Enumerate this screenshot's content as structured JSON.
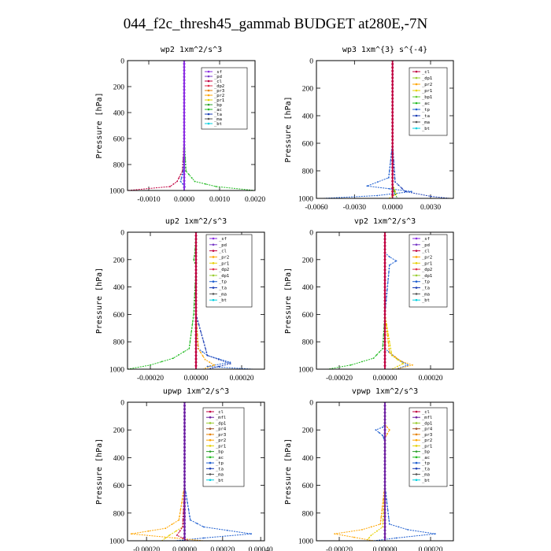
{
  "page": {
    "title": "044_f2c_thresh45_gammab  BUDGET at280E,-7N"
  },
  "colors": {
    "sf": "#8a2be2",
    "pd": "#7a3cc8",
    "cl": "#c00040",
    "dp2": "#e0304a",
    "pr2": "#ffa500",
    "pr1": "#e6d000",
    "bp": "#2ca02c",
    "ac": "#22bb22",
    "tp": "#1f5fd0",
    "ta": "#1a3cb4",
    "ma": "#555555",
    "bt": "#00d0e0",
    "mfl": "#6b1fa0",
    "dp1": "#9acd32",
    "pr4": "#a0522d",
    "pr3": "#e68000",
    "bp1": "#66cc33"
  },
  "chart_data": [
    {
      "type": "line",
      "title": "wp2   1xm^2/s^3",
      "ylabel": "Pressure [hPa]",
      "xlim": [
        -0.0016,
        0.002
      ],
      "ylim": [
        1000,
        0
      ],
      "xticks": [
        -0.001,
        0.0,
        0.001,
        0.002
      ],
      "xtick_labels": [
        "-0.0010",
        "0.0000",
        "0.0010",
        "0.0020"
      ],
      "yticks": [
        0,
        200,
        400,
        600,
        800,
        1000
      ],
      "legend": [
        "_sf",
        "_pd",
        "_cl",
        "_dp2",
        "_pr3",
        "_pr2",
        "_pr1",
        "_bp",
        "_ac",
        "_ta",
        "_ma",
        "_bt"
      ],
      "series": [
        {
          "name": "_sf",
          "color": "#8a2be2",
          "x": [
            0,
            0,
            0,
            0,
            0,
            0
          ],
          "y": [
            0,
            200,
            400,
            600,
            800,
            1000
          ]
        },
        {
          "name": "_pd",
          "color": "#c00040",
          "x": [
            0,
            0,
            0,
            0,
            -5e-05,
            -0.0002,
            -0.0004,
            -0.0016
          ],
          "y": [
            0,
            200,
            400,
            600,
            850,
            930,
            970,
            1000
          ]
        },
        {
          "name": "_bp",
          "color": "#22bb22",
          "x": [
            0,
            0,
            0,
            0,
            5e-05,
            0.0003,
            0.0009,
            0.002
          ],
          "y": [
            0,
            200,
            400,
            600,
            850,
            930,
            970,
            1000
          ]
        },
        {
          "name": "_ta",
          "color": "#1f5fd0",
          "x": [
            0,
            0,
            0,
            0,
            -3e-05,
            -0.0001,
            2e-05,
            0
          ],
          "y": [
            0,
            200,
            400,
            600,
            850,
            930,
            970,
            1000
          ]
        },
        {
          "name": "_bt",
          "color": "#8a2be2",
          "x": [
            0,
            0,
            0,
            0,
            0,
            0
          ],
          "y": [
            0,
            200,
            400,
            600,
            800,
            1000
          ]
        }
      ]
    },
    {
      "type": "line",
      "title": "wp3   1xm^{3} s^{-4}",
      "ylabel": "Pressure [hPa]",
      "xlim": [
        -0.006,
        0.0048
      ],
      "ylim": [
        1000,
        0
      ],
      "xticks": [
        -0.006,
        -0.003,
        0.0,
        0.003
      ],
      "xtick_labels": [
        "-0.0060",
        "-0.0030",
        "0.0000",
        "0.0030"
      ],
      "yticks": [
        0,
        200,
        400,
        600,
        800,
        1000
      ],
      "legend": [
        "_cl",
        "_dp1",
        "_pr2",
        "_pr1",
        "_bp1",
        "_ac",
        "_tp",
        "_ta",
        "_ma",
        "_bt"
      ],
      "series": [
        {
          "name": "_cl",
          "color": "#c00040",
          "x": [
            0,
            0,
            0,
            0,
            0,
            0
          ],
          "y": [
            0,
            200,
            400,
            600,
            800,
            1000
          ]
        },
        {
          "name": "_tp",
          "color": "#1f5fd0",
          "x": [
            0,
            0,
            0,
            0,
            -0.0003,
            -0.002,
            0.0015,
            -0.0012,
            -0.0055
          ],
          "y": [
            0,
            200,
            400,
            600,
            850,
            910,
            950,
            980,
            1000
          ]
        },
        {
          "name": "_ta",
          "color": "#1a3cb4",
          "x": [
            0,
            0,
            0,
            0,
            0.0002,
            0.001,
            0.003,
            0.0045
          ],
          "y": [
            0,
            200,
            400,
            600,
            880,
            950,
            985,
            1000
          ]
        },
        {
          "name": "_pr1",
          "color": "#e6d000",
          "x": [
            0,
            0,
            0,
            0,
            0,
            0.0003,
            -0.0003
          ],
          "y": [
            0,
            200,
            400,
            600,
            900,
            970,
            1000
          ]
        },
        {
          "name": "_bp1",
          "color": "#2ca02c",
          "x": [
            0,
            0,
            0,
            0,
            0,
            0.0002,
            0.0004
          ],
          "y": [
            0,
            200,
            400,
            600,
            900,
            970,
            1000
          ]
        },
        {
          "name": "_cl",
          "color": "#c00040",
          "x": [
            0,
            0,
            0,
            0,
            0,
            0
          ],
          "y": [
            0,
            200,
            400,
            600,
            800,
            1000
          ]
        }
      ]
    },
    {
      "type": "line",
      "title": "up2   1xm^2/s^3",
      "ylabel": "Pressure [hPa]",
      "xlim": [
        -0.0003,
        0.0003
      ],
      "ylim": [
        1000,
        0
      ],
      "xticks": [
        -0.0002,
        0.0,
        0.0002
      ],
      "xtick_labels": [
        "-0.00020",
        "0.00000",
        "0.00020"
      ],
      "yticks": [
        0,
        200,
        400,
        600,
        800,
        1000
      ],
      "legend": [
        "_sf",
        "_pd",
        "_cl",
        "_pr2",
        "_pr1",
        "_dp2",
        "_dp1",
        "_tp",
        "_ta",
        "_ma",
        "_bt"
      ],
      "series": [
        {
          "name": "_sf",
          "color": "#c00040",
          "x": [
            0,
            0,
            0,
            0,
            0,
            0
          ],
          "y": [
            0,
            200,
            400,
            600,
            800,
            1000
          ]
        },
        {
          "name": "_dp1",
          "color": "#22bb22",
          "x": [
            0,
            -5e-06,
            -1e-05,
            0,
            -1e-05,
            -3e-05,
            -0.0001,
            -0.0002,
            -0.0003
          ],
          "y": [
            0,
            150,
            200,
            250,
            600,
            850,
            920,
            970,
            1000
          ]
        },
        {
          "name": "_tp",
          "color": "#1f5fd0",
          "x": [
            0,
            0,
            0,
            1e-05,
            5e-05,
            0.00015,
            5e-05,
            0.00025
          ],
          "y": [
            0,
            200,
            600,
            850,
            900,
            950,
            980,
            1000
          ]
        },
        {
          "name": "_pr2",
          "color": "#ffa500",
          "x": [
            0,
            0,
            0,
            1e-05,
            4e-05,
            8e-05,
            3e-05
          ],
          "y": [
            0,
            200,
            600,
            850,
            930,
            970,
            1000
          ]
        },
        {
          "name": "_ta",
          "color": "#1a3cb4",
          "x": [
            0,
            0,
            0,
            5e-05,
            0.00015,
            5e-05
          ],
          "y": [
            0,
            200,
            600,
            900,
            960,
            1000
          ]
        },
        {
          "name": "_cl",
          "color": "#c00040",
          "x": [
            0,
            0,
            0,
            0,
            0,
            0
          ],
          "y": [
            0,
            200,
            400,
            600,
            800,
            1000
          ]
        }
      ]
    },
    {
      "type": "line",
      "title": "vp2   1xm^2/s^3",
      "ylabel": "Pressure [hPa]",
      "xlim": [
        -0.0003,
        0.0003
      ],
      "ylim": [
        1000,
        0
      ],
      "xticks": [
        -0.0002,
        0.0,
        0.0002
      ],
      "xtick_labels": [
        "-0.00020",
        "0.00000",
        "0.00020"
      ],
      "yticks": [
        0,
        200,
        400,
        600,
        800,
        1000
      ],
      "legend": [
        "_sf",
        "_pd",
        "_cl",
        "_pr2",
        "_pr1",
        "_dp2",
        "_dp1",
        "_tp",
        "_ta",
        "_ma",
        "_bt"
      ],
      "series": [
        {
          "name": "_sf",
          "color": "#c00040",
          "x": [
            0,
            0,
            0,
            0,
            0,
            0
          ],
          "y": [
            0,
            200,
            400,
            600,
            800,
            1000
          ]
        },
        {
          "name": "_dp1",
          "color": "#22bb22",
          "x": [
            0,
            0,
            0,
            -1e-05,
            -5e-05,
            -0.00015,
            -0.00025
          ],
          "y": [
            0,
            200,
            600,
            850,
            920,
            970,
            1000
          ]
        },
        {
          "name": "_tp",
          "color": "#1f5fd0",
          "x": [
            0,
            0,
            2e-05,
            5e-05,
            2e-05,
            0,
            0,
            5e-05,
            0.0001,
            5e-05
          ],
          "y": [
            0,
            150,
            180,
            210,
            240,
            600,
            850,
            920,
            970,
            1000
          ]
        },
        {
          "name": "_pr2",
          "color": "#ffa500",
          "x": [
            0,
            0,
            0,
            2e-05,
            7e-05,
            0.00012,
            5e-05
          ],
          "y": [
            0,
            200,
            600,
            880,
            940,
            970,
            1000
          ]
        },
        {
          "name": "_pr1",
          "color": "#e6d000",
          "x": [
            0,
            0,
            0,
            3e-05,
            8e-05,
            3e-05
          ],
          "y": [
            0,
            200,
            600,
            900,
            960,
            1000
          ]
        },
        {
          "name": "_cl",
          "color": "#c00040",
          "x": [
            0,
            0,
            0,
            0,
            0,
            0
          ],
          "y": [
            0,
            200,
            400,
            600,
            800,
            1000
          ]
        }
      ]
    },
    {
      "type": "line",
      "title": "upwp   1xm^2/s^3",
      "ylabel": "Pressure [hPa]",
      "xlim": [
        -0.0003,
        0.00042
      ],
      "ylim": [
        1000,
        0
      ],
      "xticks": [
        -0.0002,
        0.0,
        0.0002,
        0.0004
      ],
      "xtick_labels": [
        "-0.00020",
        "0.00000",
        "0.00020",
        "0.00040"
      ],
      "yticks": [
        0,
        200,
        400,
        600,
        800,
        1000
      ],
      "legend": [
        "_cl",
        "_mfl",
        "_dp1",
        "_pr4",
        "_pr3",
        "_pr2",
        "_pr1",
        "_bp",
        "_ac",
        "_tp",
        "_ta",
        "_ma",
        "_bt"
      ],
      "series": [
        {
          "name": "_cl",
          "color": "#8a2be2",
          "x": [
            0,
            0,
            0,
            0,
            0,
            0
          ],
          "y": [
            0,
            200,
            400,
            600,
            800,
            1000
          ]
        },
        {
          "name": "_ta",
          "color": "#1f5fd0",
          "x": [
            0,
            0,
            0,
            3e-05,
            0.0001,
            0.00035,
            0.0001,
            -5e-05
          ],
          "y": [
            0,
            200,
            600,
            850,
            900,
            950,
            980,
            1000
          ]
        },
        {
          "name": "_pr3",
          "color": "#ffa500",
          "x": [
            0,
            0,
            0,
            -3e-05,
            -0.0001,
            -0.00028,
            -5e-05,
            0.0001
          ],
          "y": [
            0,
            200,
            600,
            850,
            910,
            950,
            980,
            1000
          ]
        },
        {
          "name": "_pr1",
          "color": "#e6d000",
          "x": [
            0,
            0,
            0,
            -1e-05,
            -8e-05,
            -0.00012
          ],
          "y": [
            0,
            200,
            600,
            900,
            960,
            1000
          ]
        },
        {
          "name": "_dp1",
          "color": "#c00040",
          "x": [
            0,
            0,
            0,
            -1e-05,
            -4e-05,
            2e-05
          ],
          "y": [
            0,
            200,
            600,
            900,
            960,
            1000
          ]
        },
        {
          "name": "_mfl",
          "color": "#6b1fa0",
          "x": [
            0,
            0,
            0,
            0,
            0,
            0
          ],
          "y": [
            0,
            200,
            400,
            600,
            800,
            1000
          ]
        }
      ]
    },
    {
      "type": "line",
      "title": "vpwp   1xm^2/s^3",
      "ylabel": "Pressure [hPa]",
      "xlim": [
        -0.0003,
        0.0003
      ],
      "ylim": [
        1000,
        0
      ],
      "xticks": [
        -0.0002,
        0.0,
        0.0002
      ],
      "xtick_labels": [
        "-0.00020",
        "0.00000",
        "0.00020"
      ],
      "yticks": [
        0,
        200,
        400,
        600,
        800,
        1000
      ],
      "legend": [
        "_cl",
        "_mfl",
        "_dp1",
        "_pr4",
        "_pr3",
        "_pr2",
        "_pr1",
        "_bp",
        "_ac",
        "_tp",
        "_ta",
        "_ma",
        "_bt"
      ],
      "series": [
        {
          "name": "_cl",
          "color": "#8a2be2",
          "x": [
            0,
            0,
            0,
            0,
            0,
            0
          ],
          "y": [
            0,
            200,
            400,
            600,
            800,
            1000
          ]
        },
        {
          "name": "_tp",
          "color": "#1f5fd0",
          "x": [
            0,
            0,
            -1e-05,
            -4e-05,
            -1e-05,
            0,
            0
          ],
          "y": [
            0,
            160,
            180,
            200,
            240,
            280,
            600
          ]
        },
        {
          "name": "_pr3",
          "color": "#ffa500",
          "x": [
            0,
            0,
            1e-05,
            2e-05,
            1e-05,
            0,
            0,
            -2e-05,
            -0.0001,
            -0.00022,
            -5e-05
          ],
          "y": [
            0,
            160,
            180,
            200,
            230,
            260,
            600,
            880,
            920,
            950,
            1000
          ]
        },
        {
          "name": "_ta",
          "color": "#1f5fd0",
          "x": [
            0,
            0,
            0,
            2e-05,
            0.0001,
            0.00022,
            5e-05,
            -5e-05
          ],
          "y": [
            0,
            200,
            600,
            880,
            920,
            950,
            980,
            1000
          ]
        },
        {
          "name": "_pr1",
          "color": "#e6d000",
          "x": [
            0,
            0,
            0,
            -1e-05,
            -6e-05,
            -8e-05
          ],
          "y": [
            0,
            200,
            600,
            900,
            960,
            1000
          ]
        },
        {
          "name": "_mfl",
          "color": "#6b1fa0",
          "x": [
            0,
            0,
            0,
            0,
            0,
            0
          ],
          "y": [
            0,
            200,
            400,
            600,
            800,
            1000
          ]
        }
      ]
    }
  ]
}
